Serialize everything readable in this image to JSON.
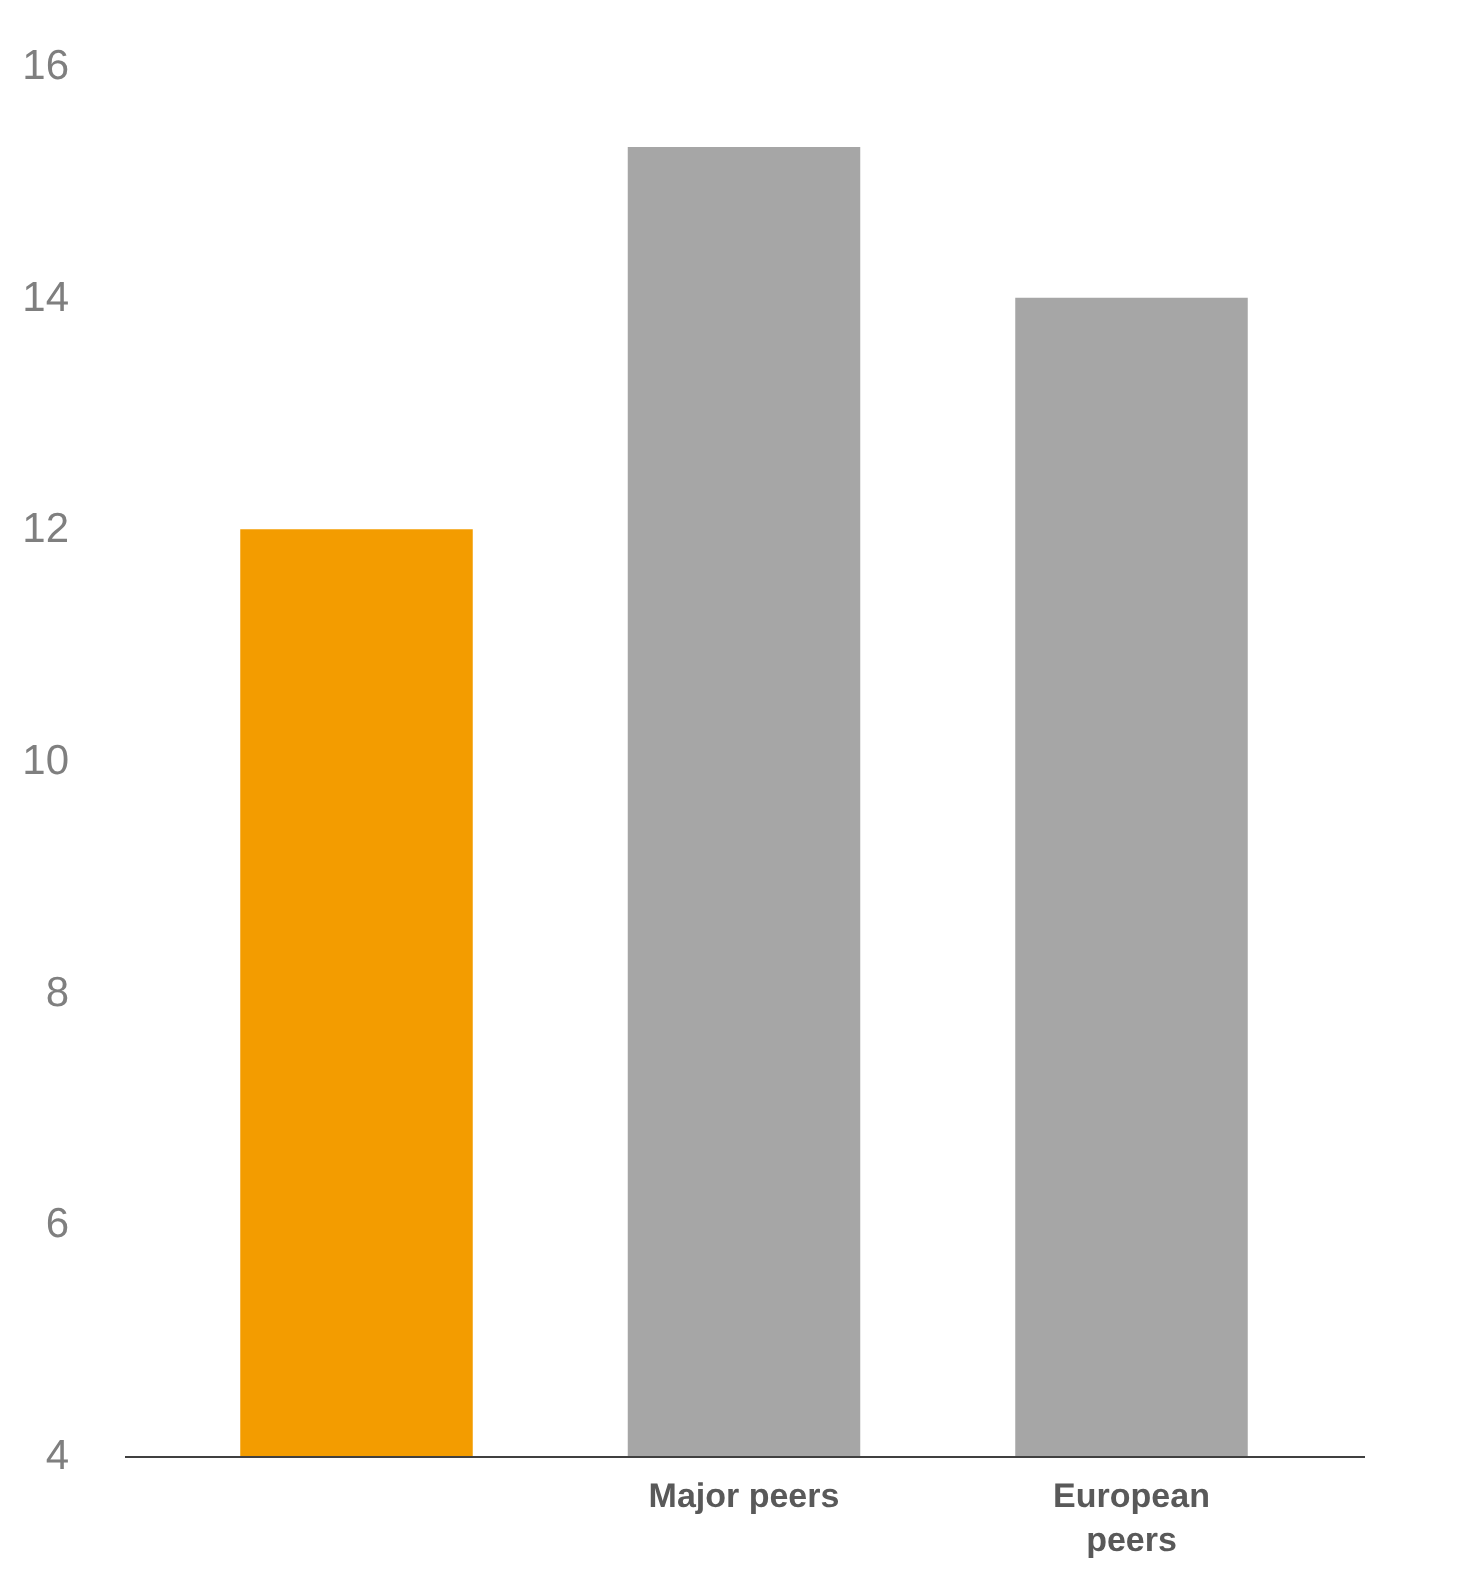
{
  "chart_data": {
    "type": "bar",
    "categories": [
      null,
      "Major peers",
      "European peers"
    ],
    "values": [
      12.0,
      15.3,
      14.0
    ],
    "colors": [
      "#f39c00",
      "#a6a6a6",
      "#a6a6a6"
    ],
    "ylim": [
      4,
      16
    ],
    "yticks": [
      4,
      6,
      8,
      10,
      12,
      14,
      16
    ],
    "grid": false
  }
}
